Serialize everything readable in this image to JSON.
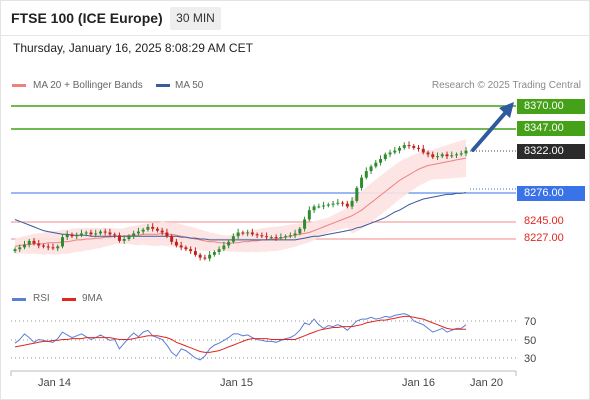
{
  "header": {
    "title": "FTSE 100 (ICE Europe)",
    "timeframe": "30 MIN",
    "datetime": "Thursday, January 16, 2025 8:08:29 AM CET"
  },
  "legend": {
    "ma20": "MA 20 + Bollinger Bands",
    "ma50": "MA 50",
    "attribution": "Research © 2025 Trading Central"
  },
  "colors": {
    "ma20": "#f08080",
    "ma50": "#3a5a99",
    "band_fill": "#fde2e2",
    "resistance": "#44a118",
    "pivot": "#2b2b2b",
    "support_blue": "#3a72e8",
    "support_red": "#e0271f",
    "candle_up": "#2e8b2e",
    "candle_down": "#c0211a",
    "rsi": "#5a7fd6",
    "rsi_ma": "#e0271f",
    "arrow": "#2f5a9e"
  },
  "levels": {
    "r2": "8370.00",
    "r1": "8347.00",
    "pivot": "8322.00",
    "s1": "8276.00",
    "s2": "8245.00",
    "s3": "8227.00"
  },
  "rsi_panel": {
    "rsi_label": "RSI",
    "ma_label": "9MA",
    "ticks": [
      "70",
      "50",
      "30"
    ]
  },
  "x_axis": {
    "labels": [
      "Jan 14",
      "Jan 15",
      "Jan 16",
      "Jan 20"
    ]
  },
  "chart_data": {
    "type": "candlestick",
    "y_range": [
      8190,
      8380
    ],
    "close": [
      8216,
      8218,
      8221,
      8225,
      8222,
      8220,
      8219,
      8218,
      8217,
      8219,
      8229,
      8232,
      8230,
      8231,
      8233,
      8234,
      8232,
      8233,
      8235,
      8234,
      8232,
      8231,
      8225,
      8227,
      8230,
      8233,
      8235,
      8237,
      8240,
      8238,
      8236,
      8234,
      8230,
      8224,
      8220,
      8218,
      8216,
      8214,
      8210,
      8207,
      8206,
      8210,
      8213,
      8216,
      8220,
      8224,
      8230,
      8234,
      8233,
      8234,
      8232,
      8231,
      8230,
      8229,
      8229,
      8228,
      8229,
      8230,
      8231,
      8233,
      8238,
      8248,
      8258,
      8262,
      8262,
      8263,
      8264,
      8265,
      8266,
      8265,
      8262,
      8268,
      8282,
      8293,
      8300,
      8305,
      8309,
      8313,
      8318,
      8320,
      8322,
      8325,
      8328,
      8327,
      8325,
      8324,
      8320,
      8318,
      8315,
      8316,
      8318,
      8316,
      8317,
      8318,
      8319,
      8322
    ],
    "ma20": [
      8219,
      8220,
      8221,
      8221,
      8222,
      8222,
      8222,
      8223,
      8223,
      8223,
      8224,
      8224,
      8225,
      8226,
      8226,
      8227,
      8227,
      8228,
      8228,
      8229,
      8229,
      8230,
      8230,
      8230,
      8231,
      8231,
      8231,
      8232,
      8232,
      8232,
      8232,
      8233,
      8232,
      8232,
      8231,
      8230,
      8229,
      8228,
      8227,
      8226,
      8225,
      8224,
      8224,
      8223,
      8223,
      8222,
      8223,
      8223,
      8224,
      8224,
      8225,
      8225,
      8226,
      8226,
      8227,
      8227,
      8228,
      8229,
      8230,
      8231,
      8232,
      8233,
      8234,
      8236,
      8238,
      8240,
      8242,
      8244,
      8246,
      8248,
      8250,
      8252,
      8255,
      8258,
      8262,
      8266,
      8270,
      8274,
      8278,
      8282,
      8286,
      8290,
      8293,
      8296,
      8299,
      8302,
      8304,
      8306,
      8307,
      8308,
      8309,
      8310,
      8311,
      8312,
      8313,
      8314
    ],
    "ma50": [
      8248,
      8246,
      8244,
      8242,
      8240,
      8238,
      8236,
      8235,
      8234,
      8233,
      8232,
      8232,
      8231,
      8231,
      8231,
      8231,
      8230,
      8230,
      8230,
      8230,
      8230,
      8230,
      8230,
      8230,
      8230,
      8230,
      8230,
      8230,
      8230,
      8230,
      8230,
      8230,
      8230,
      8230,
      8230,
      8229,
      8229,
      8228,
      8228,
      8227,
      8227,
      8226,
      8226,
      8226,
      8226,
      8226,
      8226,
      8226,
      8226,
      8226,
      8226,
      8226,
      8226,
      8226,
      8226,
      8226,
      8226,
      8226,
      8226,
      8226,
      8227,
      8228,
      8229,
      8230,
      8230,
      8231,
      8232,
      8233,
      8234,
      8235,
      8236,
      8237,
      8239,
      8240,
      8242,
      8244,
      8246,
      8248,
      8250,
      8253,
      8256,
      8258,
      8261,
      8264,
      8266,
      8268,
      8270,
      8271,
      8272,
      8273,
      8274,
      8275,
      8275,
      8276,
      8276,
      8277
    ],
    "rsi_range": [
      20,
      80
    ],
    "rsi": [
      46,
      50,
      56,
      52,
      47,
      50,
      49,
      48,
      47,
      51,
      58,
      55,
      52,
      54,
      56,
      53,
      50,
      52,
      55,
      52,
      49,
      50,
      40,
      46,
      52,
      57,
      53,
      58,
      60,
      54,
      52,
      50,
      44,
      36,
      32,
      40,
      38,
      34,
      30,
      28,
      32,
      40,
      44,
      46,
      49,
      52,
      56,
      56,
      54,
      55,
      52,
      50,
      49,
      48,
      48,
      47,
      49,
      51,
      52,
      55,
      60,
      68,
      66,
      72,
      66,
      62,
      65,
      64,
      66,
      64,
      60,
      65,
      70,
      72,
      72,
      74,
      72,
      73,
      75,
      74,
      76,
      77,
      78,
      76,
      70,
      68,
      66,
      62,
      58,
      60,
      62,
      58,
      60,
      62,
      62,
      66
    ],
    "rsi_ma": [
      42,
      43,
      44,
      45,
      46,
      47,
      48,
      48,
      49,
      49,
      50,
      50,
      51,
      51,
      51,
      52,
      52,
      52,
      52,
      52,
      52,
      51,
      50,
      50,
      50,
      51,
      52,
      53,
      54,
      54,
      54,
      53,
      52,
      50,
      47,
      45,
      43,
      41,
      39,
      37,
      36,
      36,
      37,
      38,
      40,
      42,
      44,
      46,
      48,
      50,
      51,
      51,
      51,
      51,
      50,
      50,
      50,
      50,
      50,
      50,
      52,
      54,
      56,
      58,
      60,
      61,
      62,
      63,
      63,
      64,
      64,
      64,
      65,
      66,
      68,
      69,
      70,
      71,
      71,
      72,
      73,
      74,
      75,
      75,
      74,
      73,
      72,
      70,
      68,
      66,
      64,
      62,
      61,
      61,
      61,
      61
    ]
  }
}
